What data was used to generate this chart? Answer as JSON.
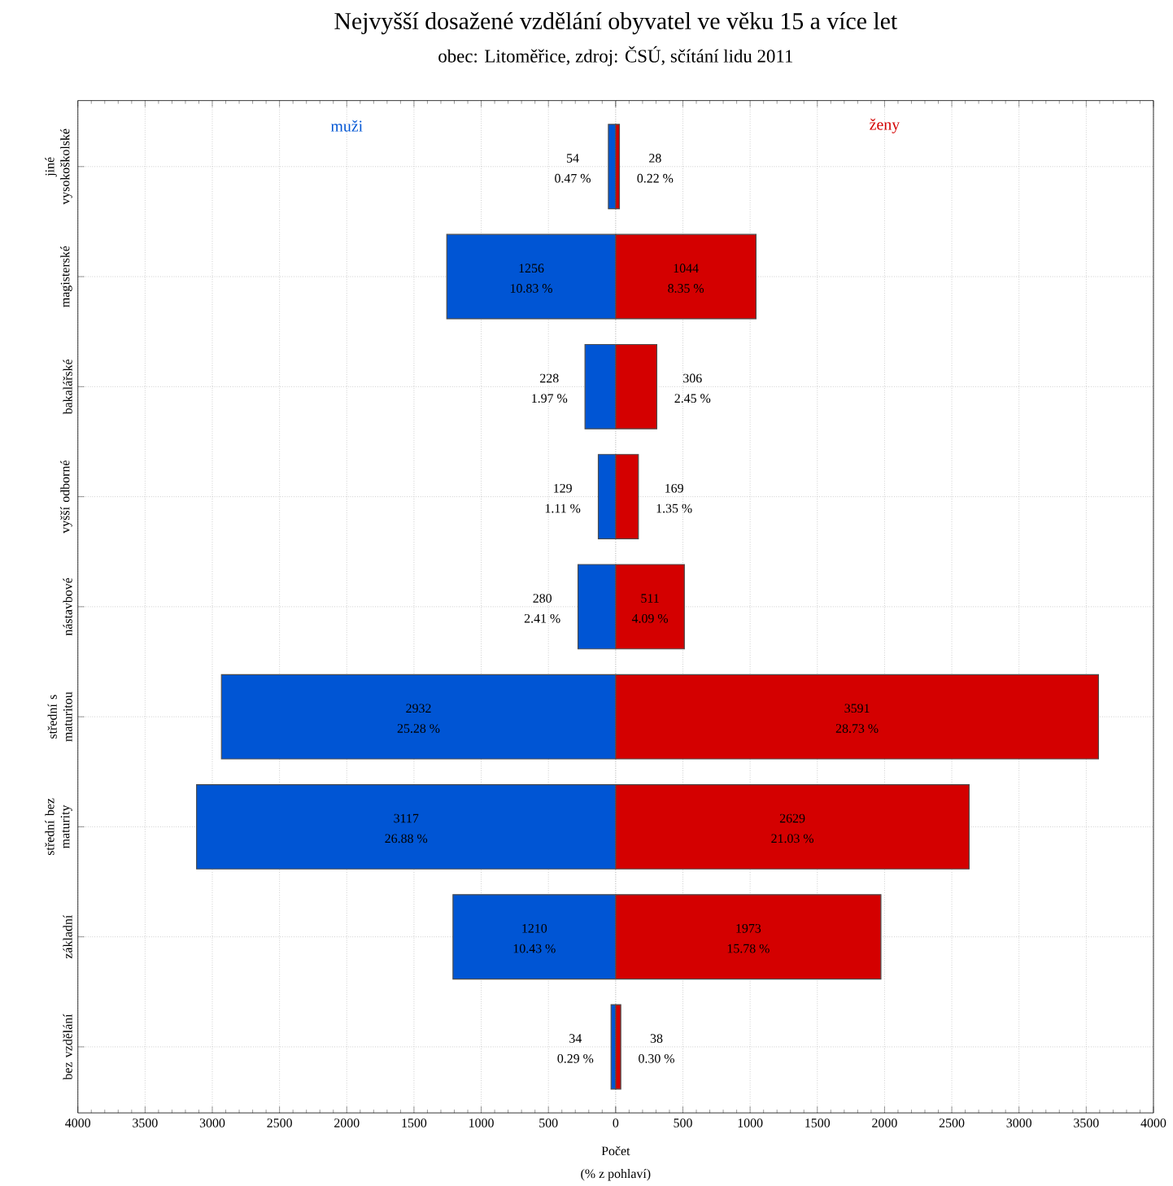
{
  "chart_data": [
    {
      "type": "bar",
      "orientation": "horizontal",
      "title": "Nejvyšší dosažené vzdělání obyvatel ve věku 15 a více let",
      "subtitle": "obec: Litoměřice, zdroj: ČSÚ, sčítání lidu 2011",
      "xlabel": "Počet",
      "categories": [
        "jiné vysokoškolské",
        "magisterské",
        "bakalářské",
        "vyšší odborné",
        "nástavbové",
        "střední s maturitou",
        "střední bez maturity",
        "základní",
        "bez vzdělání"
      ],
      "series": [
        {
          "name": "muži",
          "color": "#0055d4",
          "values": [
            54,
            1256,
            228,
            129,
            280,
            2932,
            3117,
            1210,
            34
          ]
        }
      ],
      "data_labels": true,
      "xlim": [
        4000,
        0
      ],
      "xticks": [
        4000,
        3500,
        3000,
        2500,
        2000,
        1500,
        1000,
        500,
        {
          "value": 0,
          "label": null
        }
      ],
      "grid": true,
      "annotations": [
        "0.47 %",
        "10.83 %",
        "1.97 %",
        "1.11 %",
        "2.41 %",
        "25.28 %",
        "26.88 %",
        "10.43 %",
        "0.29 %",
        "(% z pohlaví)"
      ]
    },
    {
      "type": "bar",
      "orientation": "horizontal",
      "series": [
        {
          "name": "ženy",
          "color": "#d40000",
          "values": [
            28,
            1044,
            306,
            169,
            511,
            3591,
            2629,
            1973,
            38
          ]
        }
      ],
      "data_labels": true,
      "xlim": [
        0,
        4000
      ],
      "xticks": [
        0,
        500,
        1000,
        1500,
        2000,
        2500,
        3000,
        3500,
        4000
      ],
      "grid": true,
      "tick_labels": "x",
      "annotations": [
        "0.22 %",
        "8.35 %",
        "2.45 %",
        "1.35 %",
        "4.09 %",
        "28.73 %",
        "21.03 %",
        "15.78 %",
        "0.30 %"
      ]
    }
  ]
}
